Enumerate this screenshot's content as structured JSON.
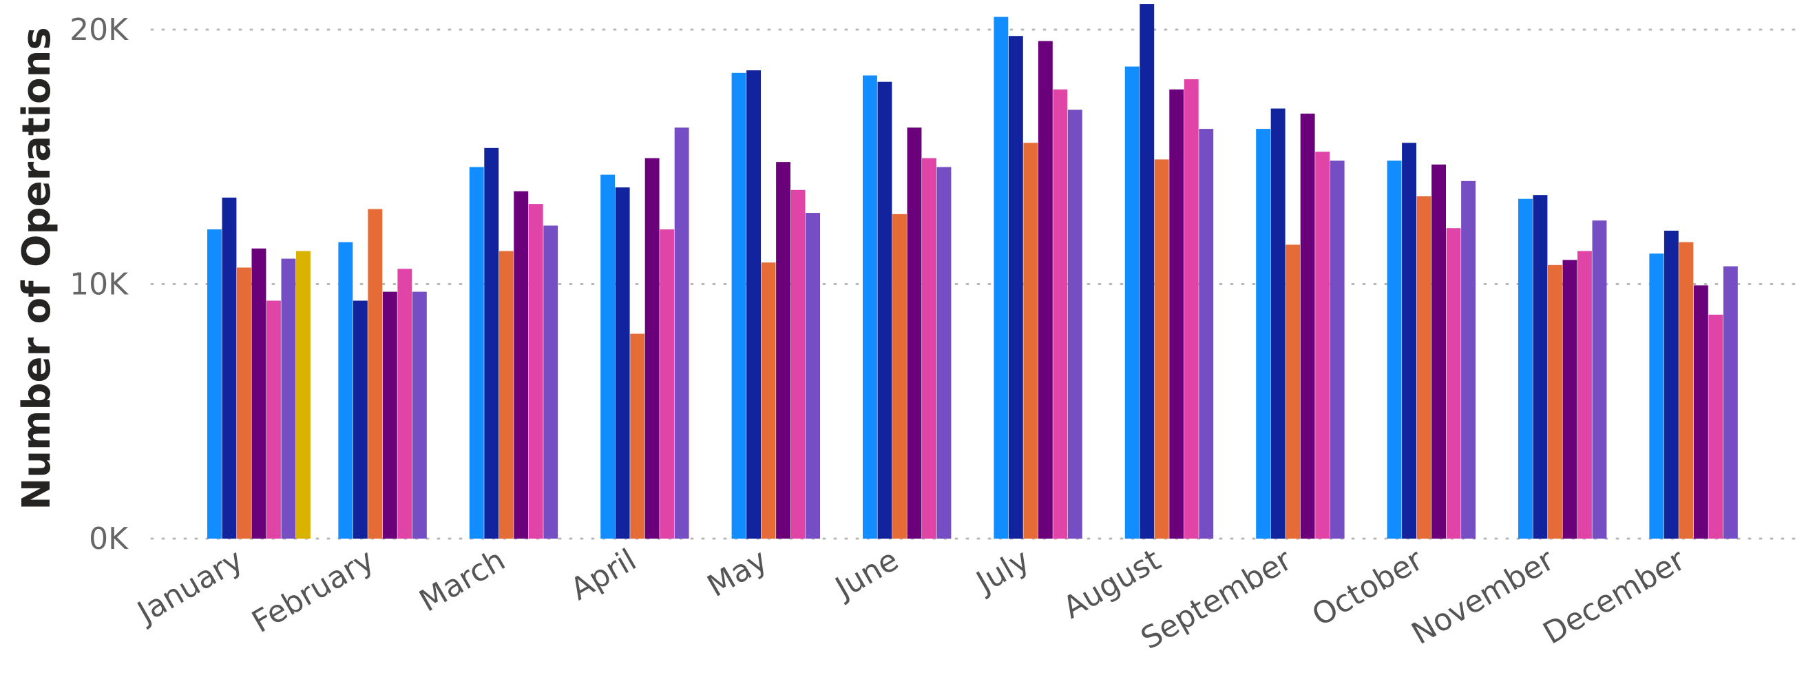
{
  "chart_data": {
    "type": "bar",
    "title": "",
    "xlabel": "",
    "ylabel": "Number of Operations",
    "ylim": [
      0,
      20000
    ],
    "yticks": [
      {
        "value": 0,
        "label": "0K"
      },
      {
        "value": 10000,
        "label": "10K"
      },
      {
        "value": 20000,
        "label": "20K"
      }
    ],
    "grid": true,
    "legend": "none",
    "categories": [
      "January",
      "February",
      "March",
      "April",
      "May",
      "June",
      "July",
      "August",
      "September",
      "October",
      "November",
      "December"
    ],
    "series": [
      {
        "color": "#118DFF",
        "values": [
          12150,
          11650,
          14600,
          14300,
          18300,
          18200,
          20500,
          18550,
          16100,
          14850,
          13350,
          11200
        ]
      },
      {
        "color": "#12239E",
        "values": [
          13400,
          9350,
          15350,
          13800,
          18400,
          17950,
          19750,
          21000,
          16900,
          15550,
          13500,
          12100
        ]
      },
      {
        "color": "#E66C37",
        "values": [
          10650,
          12950,
          11300,
          8050,
          10850,
          12750,
          15550,
          14900,
          11550,
          13450,
          10750,
          11650
        ]
      },
      {
        "color": "#6B007B",
        "values": [
          11400,
          9700,
          13650,
          14950,
          14800,
          16150,
          19550,
          17650,
          16700,
          14700,
          10950,
          9950
        ]
      },
      {
        "color": "#E044A7",
        "values": [
          9350,
          10600,
          13150,
          12150,
          13700,
          14950,
          17650,
          18050,
          15200,
          12200,
          11300,
          8800
        ]
      },
      {
        "color": "#744EC2",
        "values": [
          11000,
          9700,
          12300,
          16150,
          12800,
          14600,
          16850,
          16100,
          14850,
          14050,
          12500,
          10700
        ]
      },
      {
        "color": "#D9B300",
        "values": [
          11300,
          null,
          null,
          null,
          null,
          null,
          null,
          null,
          null,
          null,
          null,
          null
        ]
      }
    ]
  }
}
